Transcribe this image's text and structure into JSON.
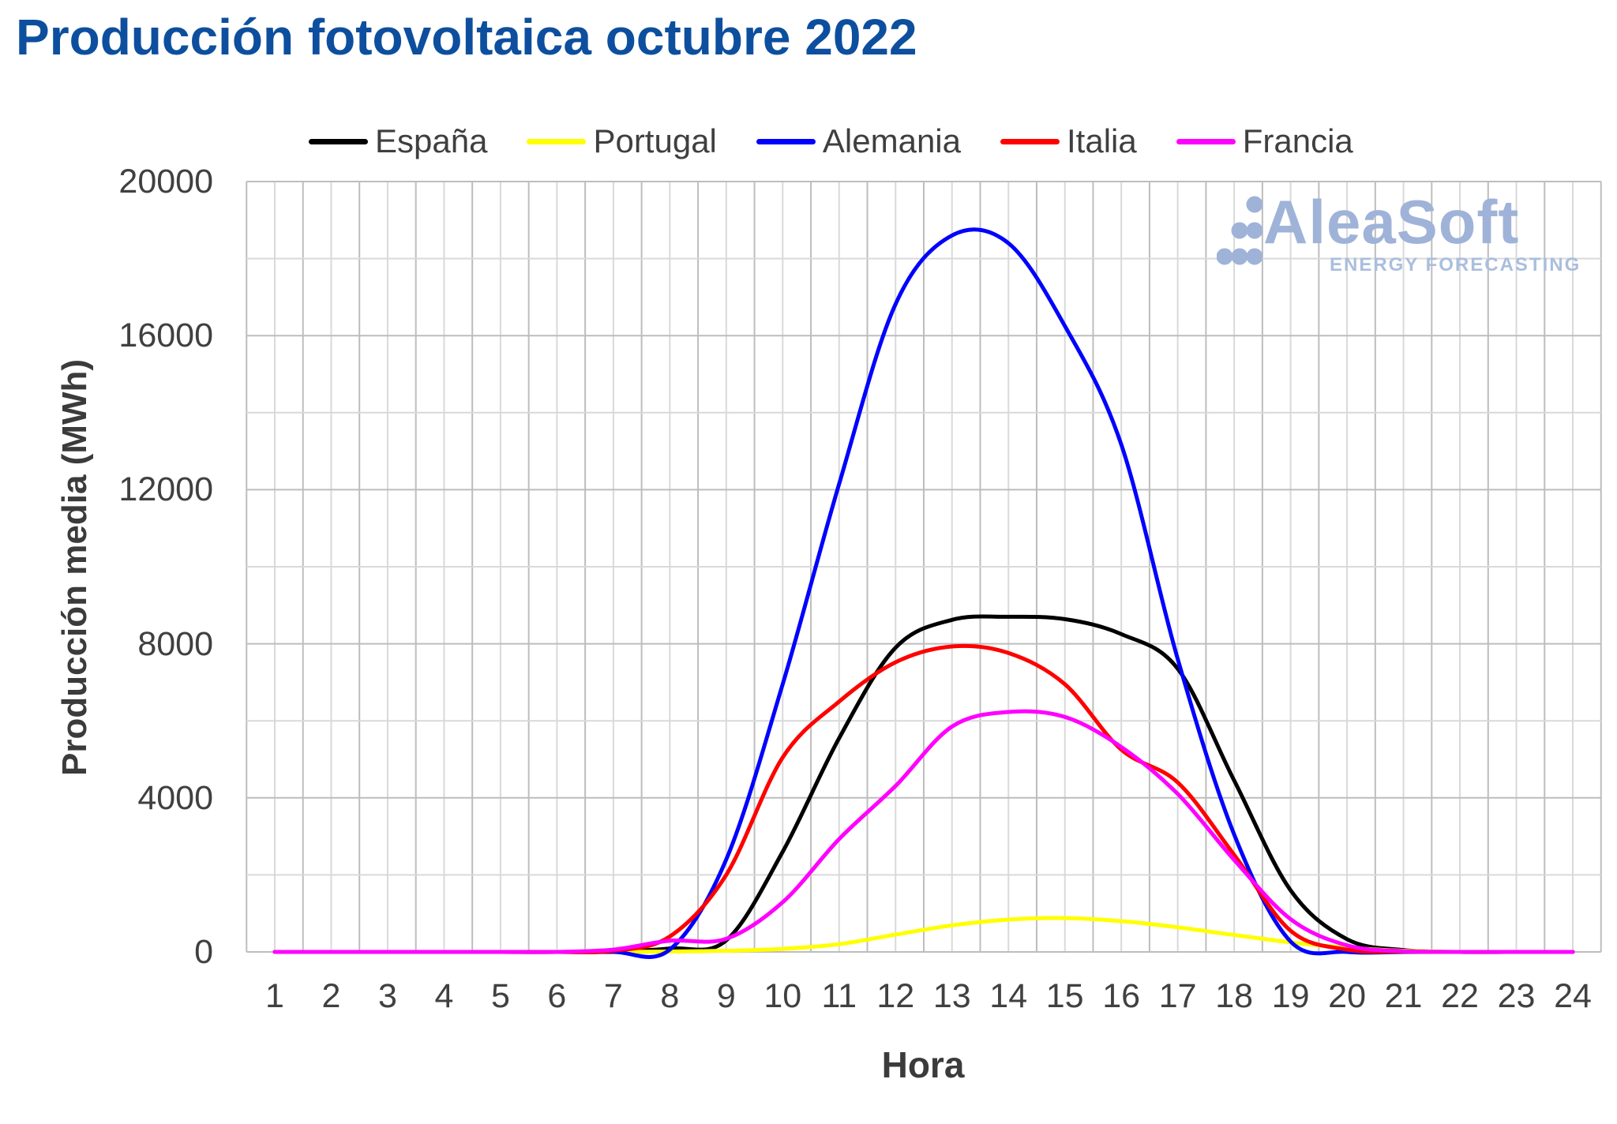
{
  "header": {
    "title": "Producción fotovoltaica octubre 2022"
  },
  "legend": {
    "items": [
      {
        "label": "España",
        "color": "#000000"
      },
      {
        "label": "Portugal",
        "color": "#ffff00"
      },
      {
        "label": "Alemania",
        "color": "#0000ff"
      },
      {
        "label": "Italia",
        "color": "#ff0000"
      },
      {
        "label": "Francia",
        "color": "#ff00ff"
      }
    ]
  },
  "logo": {
    "name": "AleaSoft",
    "tagline": "ENERGY FORECASTING"
  },
  "colors": {
    "title": "#0d4f9e",
    "tick_text": "#404040",
    "grid_minor": "#d9d9d9",
    "grid_major": "#bdbdbd",
    "logo": "#9fb3d8",
    "logo_tagline": "#aabedd"
  },
  "chart_data": {
    "type": "line",
    "title": "Producción fotovoltaica octubre 2022",
    "xlabel": "Hora",
    "ylabel": "Producción media (MWh)",
    "xlim": [
      0.5,
      24.5
    ],
    "ylim": [
      0,
      20000
    ],
    "x_grid_step": 0.5,
    "y_grid_minor": 2000,
    "y_grid_major": 4000,
    "x_ticks": [
      1,
      2,
      3,
      4,
      5,
      6,
      7,
      8,
      9,
      10,
      11,
      12,
      13,
      14,
      15,
      16,
      17,
      18,
      19,
      20,
      21,
      22,
      23,
      24
    ],
    "y_ticks": [
      0,
      4000,
      8000,
      12000,
      16000,
      20000
    ],
    "grid": true,
    "legend_position": "top",
    "x": [
      1,
      2,
      3,
      4,
      5,
      6,
      7,
      8,
      9,
      10,
      11,
      12,
      13,
      14,
      15,
      16,
      17,
      18,
      19,
      20,
      21,
      22,
      23,
      24
    ],
    "series": [
      {
        "name": "España",
        "color": "#000000",
        "values": [
          0,
          0,
          0,
          0,
          0,
          0,
          10,
          90,
          300,
          2600,
          5550,
          7900,
          8620,
          8700,
          8640,
          8250,
          7350,
          4450,
          1600,
          330,
          50,
          0,
          0,
          0
        ]
      },
      {
        "name": "Portugal",
        "color": "#ffff00",
        "values": [
          0,
          0,
          0,
          0,
          0,
          0,
          0,
          10,
          30,
          80,
          200,
          450,
          690,
          840,
          880,
          800,
          640,
          440,
          250,
          110,
          30,
          0,
          0,
          0
        ]
      },
      {
        "name": "Alemania",
        "color": "#0000ff",
        "values": [
          0,
          0,
          0,
          0,
          0,
          0,
          0,
          60,
          2400,
          6950,
          12150,
          16820,
          18600,
          18400,
          16250,
          13170,
          7600,
          3050,
          270,
          0,
          0,
          0,
          0,
          0
        ]
      },
      {
        "name": "Italia",
        "color": "#ff0000",
        "values": [
          0,
          0,
          0,
          0,
          0,
          0,
          30,
          400,
          2000,
          5050,
          6500,
          7520,
          7930,
          7760,
          6950,
          5250,
          4400,
          2520,
          550,
          60,
          10,
          0,
          0,
          0
        ]
      },
      {
        "name": "Francia",
        "color": "#ff00ff",
        "values": [
          0,
          0,
          0,
          0,
          0,
          0,
          60,
          290,
          340,
          1290,
          2930,
          4310,
          5850,
          6230,
          6100,
          5320,
          4100,
          2390,
          850,
          170,
          20,
          0,
          0,
          0
        ]
      }
    ]
  }
}
